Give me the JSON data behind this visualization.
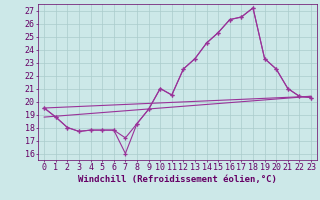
{
  "title": "",
  "xlabel": "Windchill (Refroidissement éolien,°C)",
  "ylabel": "",
  "background_color": "#cce8e8",
  "line_color": "#993399",
  "xlim": [
    -0.5,
    23.5
  ],
  "ylim": [
    15.5,
    27.5
  ],
  "xticks": [
    0,
    1,
    2,
    3,
    4,
    5,
    6,
    7,
    8,
    9,
    10,
    11,
    12,
    13,
    14,
    15,
    16,
    17,
    18,
    19,
    20,
    21,
    22,
    23
  ],
  "yticks": [
    16,
    17,
    18,
    19,
    20,
    21,
    22,
    23,
    24,
    25,
    26,
    27
  ],
  "series_upper_x": [
    0,
    1,
    2,
    3,
    4,
    5,
    6,
    7,
    8,
    9,
    10,
    11,
    12,
    13,
    14,
    15,
    16,
    17,
    18,
    19,
    20,
    21,
    22,
    23
  ],
  "series_upper_y": [
    19.5,
    18.8,
    18.0,
    17.7,
    17.8,
    17.8,
    17.8,
    17.2,
    18.3,
    19.4,
    21.0,
    20.5,
    22.5,
    23.3,
    24.5,
    25.3,
    26.3,
    26.5,
    27.2,
    23.3,
    22.5,
    21.0,
    20.4,
    20.3
  ],
  "series_lower_x": [
    0,
    1,
    2,
    3,
    4,
    5,
    6,
    7,
    8,
    9,
    10,
    11,
    12,
    13,
    14,
    15,
    16,
    17,
    18,
    19,
    20,
    21,
    22,
    23
  ],
  "series_lower_y": [
    19.5,
    18.8,
    18.0,
    17.7,
    17.8,
    17.8,
    17.8,
    16.0,
    18.3,
    19.4,
    21.0,
    20.5,
    22.5,
    23.3,
    24.5,
    25.3,
    26.3,
    26.5,
    27.2,
    23.3,
    22.5,
    21.0,
    20.4,
    20.3
  ],
  "trend1_x": [
    0,
    23
  ],
  "trend1_y": [
    18.8,
    20.4
  ],
  "trend2_x": [
    0,
    23
  ],
  "trend2_y": [
    19.5,
    20.4
  ],
  "grid_color": "#aacccc",
  "font_color": "#660066",
  "font_size": 6,
  "xlabel_fontsize": 6.5
}
